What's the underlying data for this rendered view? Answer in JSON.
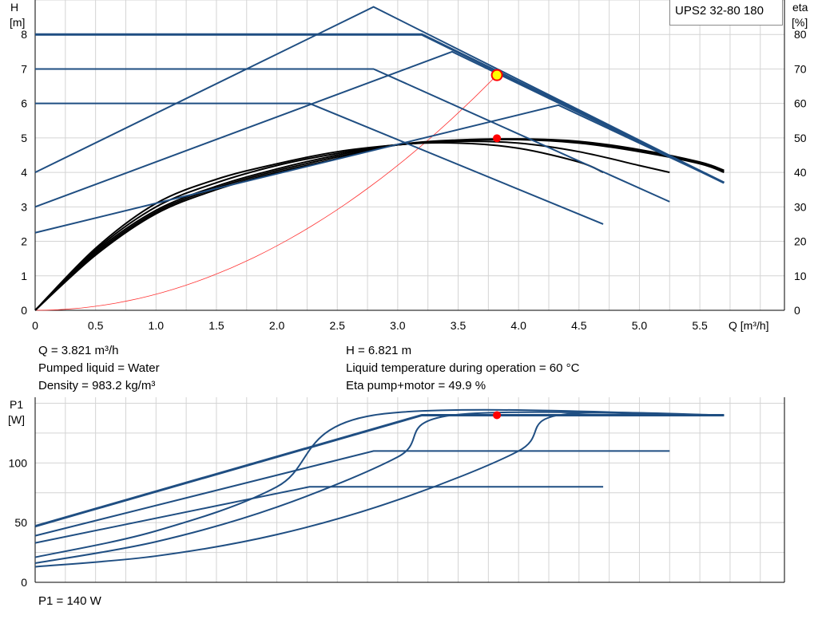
{
  "model": "UPS2 32-80 180",
  "info": {
    "flow": "Q = 3.821 m³/h",
    "liquid": "Pumped liquid = Water",
    "density": "Density = 983.2 kg/m³",
    "head": "H = 6.821 m",
    "temperature": "Liquid temperature during operation = 60 °C",
    "eta": "Eta pump+motor = 49.9 %",
    "power": "P1 = 140 W"
  },
  "axes": {
    "h_label": "H",
    "h_unit": "[m]",
    "eta_label": "eta",
    "eta_unit": "[%]",
    "q_label": "Q [m³/h]",
    "p_label": "P1",
    "p_unit": "[W]"
  },
  "chart_data": [
    {
      "type": "line",
      "name": "head",
      "xlim": [
        0,
        6.2
      ],
      "ylim": [
        0,
        9
      ],
      "y2lim": [
        0,
        90
      ],
      "x_ticks": [
        "0",
        "0.5",
        "1.0",
        "1.5",
        "2.0",
        "2.5",
        "3.0",
        "3.5",
        "4.0",
        "4.5",
        "5.0",
        "5.5"
      ],
      "y_ticks": [
        "0",
        "1",
        "2",
        "3",
        "4",
        "5",
        "6",
        "7",
        "8"
      ],
      "y2_ticks": [
        "0",
        "10",
        "20",
        "30",
        "40",
        "50",
        "60",
        "70",
        "80"
      ],
      "grid": true,
      "pump_curves": [
        {
          "points": [
            [
              0,
              8
            ],
            [
              3.2,
              8
            ],
            [
              5.7,
              3.7
            ]
          ],
          "width": 3
        },
        {
          "points": [
            [
              0,
              7
            ],
            [
              2.8,
              7
            ],
            [
              5.25,
              3.15
            ]
          ],
          "width": 2
        },
        {
          "points": [
            [
              0,
              6
            ],
            [
              2.27,
              6
            ],
            [
              4.7,
              2.5
            ]
          ],
          "width": 2
        },
        {
          "points": [
            [
              0,
              4
            ],
            [
              2.8,
              8.8
            ],
            [
              5.7,
              3.7
            ]
          ],
          "width": 2
        },
        {
          "points": [
            [
              0,
              3
            ],
            [
              3.45,
              7.5
            ],
            [
              5.7,
              3.7
            ]
          ],
          "width": 2
        },
        {
          "points": [
            [
              0,
              2.25
            ],
            [
              4.33,
              5.95
            ],
            [
              5.7,
              3.7
            ]
          ],
          "width": 2
        }
      ],
      "efficiency_curves": [
        [
          [
            0,
            0
          ],
          [
            0.5,
            17
          ],
          [
            1,
            29
          ],
          [
            1.5,
            36
          ],
          [
            2,
            41
          ],
          [
            2.5,
            45
          ],
          [
            3,
            48
          ],
          [
            3.5,
            48.5
          ],
          [
            4,
            47
          ],
          [
            4.5,
            43
          ],
          [
            4.7,
            40
          ]
        ],
        [
          [
            0,
            0
          ],
          [
            0.5,
            17.5
          ],
          [
            1,
            30
          ],
          [
            1.5,
            37
          ],
          [
            2,
            42
          ],
          [
            2.5,
            45.5
          ],
          [
            3,
            48
          ],
          [
            3.5,
            49
          ],
          [
            4,
            48.5
          ],
          [
            4.5,
            46
          ],
          [
            5,
            42
          ],
          [
            5.25,
            40
          ]
        ],
        [
          [
            0,
            0
          ],
          [
            0.5,
            18
          ],
          [
            1,
            31
          ],
          [
            1.5,
            38
          ],
          [
            2,
            42.5
          ],
          [
            2.5,
            46
          ],
          [
            3,
            48
          ],
          [
            3.5,
            49.2
          ],
          [
            4,
            49.5
          ],
          [
            4.5,
            48.5
          ],
          [
            5,
            46
          ],
          [
            5.5,
            42.5
          ],
          [
            5.7,
            40
          ]
        ],
        [
          [
            0,
            0
          ],
          [
            0.5,
            16.5
          ],
          [
            1,
            28.5
          ],
          [
            1.5,
            35.5
          ],
          [
            2,
            40.5
          ],
          [
            2.5,
            44.5
          ],
          [
            3,
            48
          ],
          [
            3.5,
            49.3
          ],
          [
            4,
            49.6
          ],
          [
            4.5,
            48.8
          ],
          [
            5,
            46.3
          ],
          [
            5.5,
            42.8
          ],
          [
            5.7,
            40.3
          ]
        ],
        [
          [
            0,
            0
          ],
          [
            0.5,
            16
          ],
          [
            1,
            28
          ],
          [
            1.5,
            35
          ],
          [
            2,
            40
          ],
          [
            2.5,
            44
          ],
          [
            3,
            48
          ],
          [
            3.5,
            49.4
          ],
          [
            4,
            49.7
          ],
          [
            4.5,
            49
          ],
          [
            5,
            46.6
          ],
          [
            5.5,
            43
          ],
          [
            5.7,
            40.6
          ]
        ]
      ],
      "system_curve": {
        "a": 0.4672,
        "to_q": 3.821
      },
      "duty_point": {
        "q": 3.821,
        "h": 6.821
      },
      "eta_point": {
        "q": 3.821,
        "eta": 49.9
      }
    },
    {
      "type": "line",
      "name": "power",
      "xlim": [
        0,
        6.2
      ],
      "ylim": [
        0,
        155
      ],
      "y_ticks": [
        "0",
        "50",
        "100"
      ],
      "grid": true,
      "power_curves": [
        {
          "points": [
            [
              0,
              47
            ],
            [
              3.2,
              140
            ],
            [
              5.7,
              140
            ]
          ],
          "width": 3
        },
        {
          "points": [
            [
              0,
              39
            ],
            [
              2.8,
              110
            ],
            [
              5.25,
              110
            ]
          ],
          "width": 2
        },
        {
          "points": [
            [
              0,
              33
            ],
            [
              2.27,
              80
            ],
            [
              4.7,
              80
            ]
          ],
          "width": 2
        },
        {
          "points": [
            [
              0,
              21
            ],
            [
              1,
              43
            ],
            [
              2,
              80
            ],
            [
              2.8,
              140
            ],
            [
              5.7,
              140
            ]
          ],
          "width": 2
        },
        {
          "points": [
            [
              0,
              16
            ],
            [
              1,
              34
            ],
            [
              2,
              63
            ],
            [
              3,
              105
            ],
            [
              3.45,
              140
            ],
            [
              5.7,
              140
            ]
          ],
          "width": 2
        },
        {
          "points": [
            [
              0,
              13
            ],
            [
              1,
              22
            ],
            [
              2,
              40
            ],
            [
              3,
              69
            ],
            [
              4,
              110
            ],
            [
              4.33,
              140
            ],
            [
              5.7,
              140
            ]
          ],
          "width": 2
        }
      ],
      "duty_point": {
        "q": 3.821,
        "p": 140
      }
    }
  ],
  "colors": {
    "pump": "#1f4e82",
    "eta": "#000000",
    "system": "#ff3333",
    "duty": "#ff0000",
    "grid": "#d4d4d4"
  }
}
